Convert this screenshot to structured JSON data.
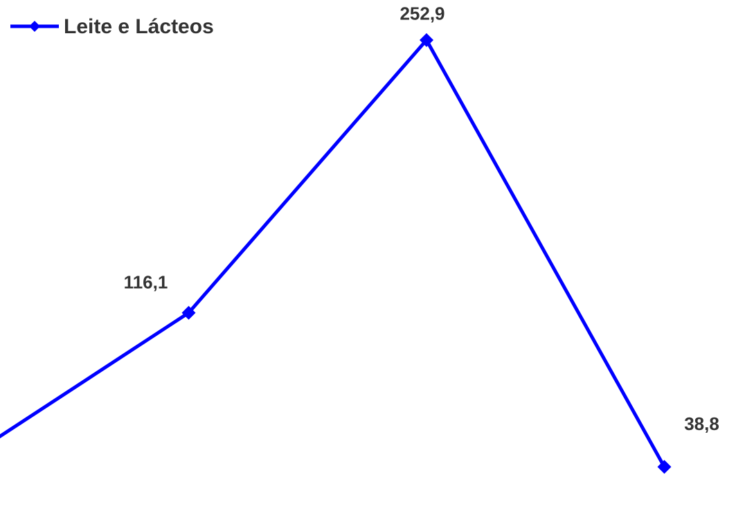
{
  "chart_data": {
    "type": "line",
    "categories": [
      null,
      null,
      null,
      null
    ],
    "series": [
      {
        "name": "Leite e Lácteos",
        "color": "#0000ff",
        "values": [
          38,
          116.1,
          252.9,
          38.8
        ],
        "value_labels": [
          null,
          "116,1",
          "252,9",
          "38,8"
        ]
      }
    ],
    "ylim": [
      0,
      273
    ]
  }
}
